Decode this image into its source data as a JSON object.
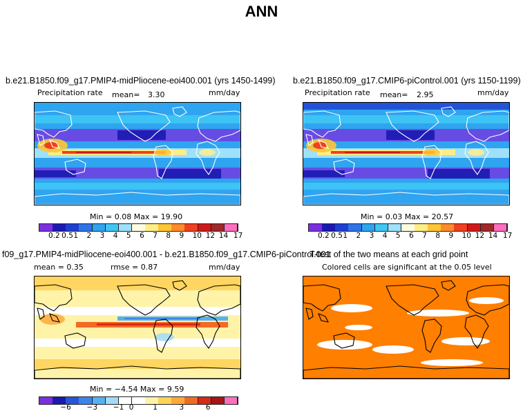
{
  "title": "ANN",
  "panels": [
    {
      "title": "b.e21.B1850.f09_g17.PMIP4-midPliocene-eoi400.001 (yrs 1450-1499)",
      "variable": "Precipitation rate",
      "mean_label": "mean=",
      "mean_value": "3.30",
      "units": "mm/day",
      "minmax": "Min =    0.08  Max =    19.90"
    },
    {
      "title": "b.e21.B1850.f09_g17.CMIP6-piControl.001 (yrs 1150-1199)",
      "variable": "Precipitation rate",
      "mean_label": "mean=",
      "mean_value": "2.95",
      "units": "mm/day",
      "minmax": "Min =    0.03  Max =    20.57"
    },
    {
      "title": "f09_g17.PMIP4-midPliocene-eoi400.001 - b.e21.B1850.f09_g17.CMIP6-piControl.001",
      "mean_text": "mean =     0.35",
      "rmse_text": "rmse =     0.87",
      "units": "mm/day",
      "minmax": "Min =   −4.54  Max =     9.59"
    },
    {
      "title": "T-test of the two means at each grid point",
      "subtitle": "Colored cells are significant at the 0.05 level"
    }
  ],
  "colorbars": {
    "precip": {
      "colors": [
        "#7b2fe0",
        "#1a1ab0",
        "#1f3fd0",
        "#2e74e8",
        "#2fa4f0",
        "#3fc6f4",
        "#9fe0fa",
        "#fffde0",
        "#ffee88",
        "#ffc633",
        "#ff8a2a",
        "#f04020",
        "#d01818",
        "#a02828",
        "#ff6fc0"
      ],
      "labels": [
        "0.2",
        "0.5",
        "1",
        "2",
        "3",
        "4",
        "5",
        "6",
        "7",
        "8",
        "9",
        "10",
        "12",
        "14",
        "17"
      ]
    },
    "diff": {
      "colors": [
        "#7b2fe0",
        "#1a1ab0",
        "#2a55d6",
        "#3a86ec",
        "#53b2f2",
        "#a2daf8",
        "#ffffff",
        "#ffffff",
        "#fff3a8",
        "#ffd35a",
        "#ffa838",
        "#f36a22",
        "#d82a18",
        "#a71616",
        "#ff6fc0"
      ],
      "labels": [
        "−6",
        "−3",
        "−1",
        "0",
        "1",
        "3",
        "6"
      ]
    }
  },
  "chart_data": [
    {
      "type": "heatmap",
      "title": "b.e21.B1850.f09_g17.PMIP4-midPliocene-eoi400.001 (yrs 1450-1499)",
      "variable": "Precipitation rate",
      "units": "mm/day",
      "mean": 3.3,
      "min": 0.08,
      "max": 19.9,
      "levels": [
        0.2,
        0.5,
        1,
        2,
        3,
        4,
        5,
        6,
        7,
        8,
        9,
        10,
        12,
        14,
        17
      ]
    },
    {
      "type": "heatmap",
      "title": "b.e21.B1850.f09_g17.CMIP6-piControl.001 (yrs 1150-1199)",
      "variable": "Precipitation rate",
      "units": "mm/day",
      "mean": 2.95,
      "min": 0.03,
      "max": 20.57,
      "levels": [
        0.2,
        0.5,
        1,
        2,
        3,
        4,
        5,
        6,
        7,
        8,
        9,
        10,
        12,
        14,
        17
      ]
    },
    {
      "type": "heatmap",
      "title": "f09_g17.PMIP4-midPliocene-eoi400.001 - b.e21.B1850.f09_g17.CMIP6-piControl.001",
      "units": "mm/day",
      "mean": 0.35,
      "rmse": 0.87,
      "min": -4.54,
      "max": 9.59,
      "levels": [
        -6,
        -3,
        -1,
        0,
        1,
        3,
        6
      ]
    },
    {
      "type": "heatmap",
      "title": "T-test of the two means at each grid point",
      "note": "Colored cells are significant at the 0.05 level",
      "significance_level": 0.05
    }
  ]
}
